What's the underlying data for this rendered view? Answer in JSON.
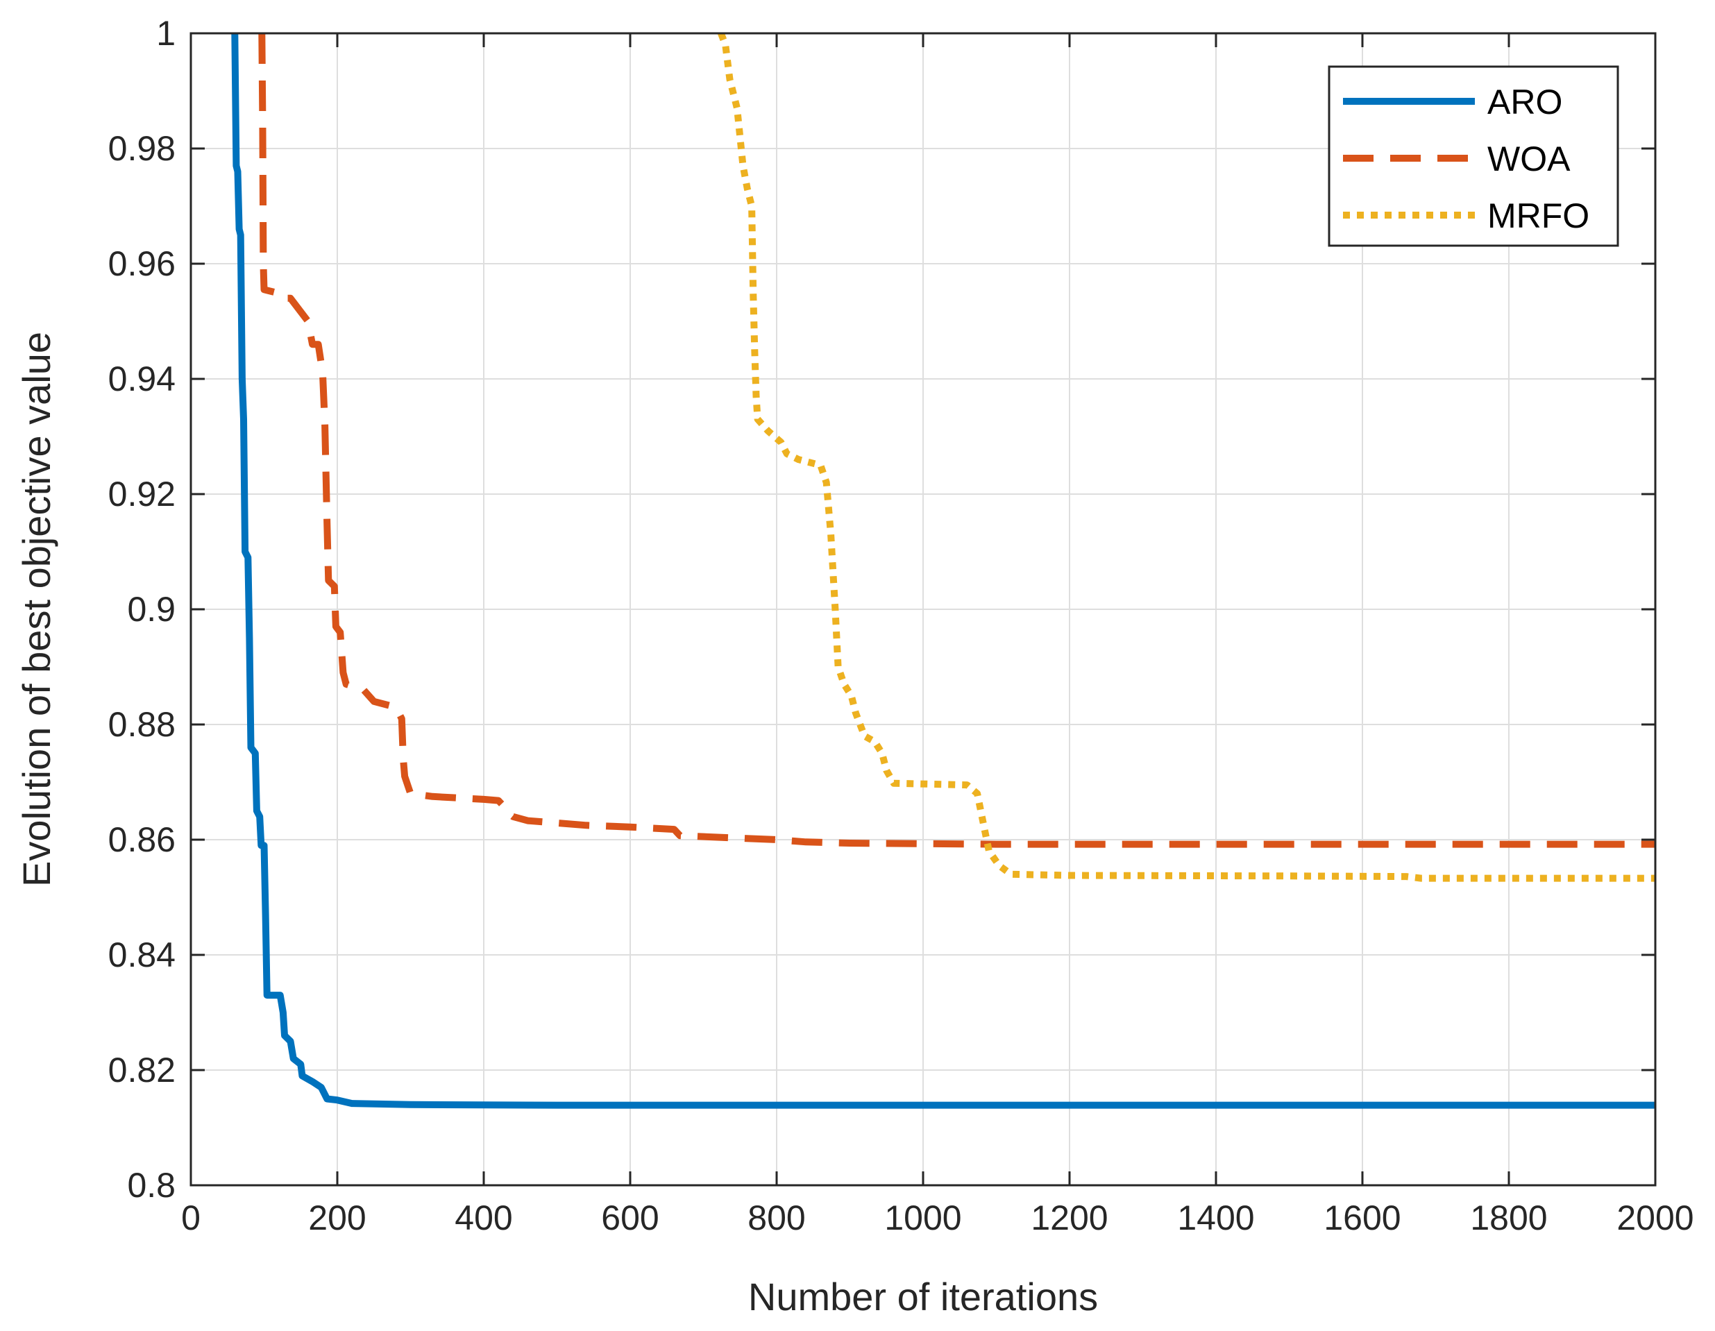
{
  "chart_data": {
    "type": "line",
    "title": "",
    "xlabel": "Number of iterations",
    "ylabel": "Evolution of best objective value",
    "xlim": [
      0,
      2000
    ],
    "ylim": [
      0.8,
      1.0
    ],
    "xticks": [
      0,
      200,
      400,
      600,
      800,
      1000,
      1200,
      1400,
      1600,
      1800,
      2000
    ],
    "yticks": [
      0.8,
      0.82,
      0.84,
      0.86,
      0.88,
      0.9,
      0.92,
      0.94,
      0.96,
      0.98,
      1
    ],
    "xtick_labels": [
      "0",
      "200",
      "400",
      "600",
      "800",
      "1000",
      "1200",
      "1400",
      "1600",
      "1800",
      "2000"
    ],
    "ytick_labels": [
      "0.8",
      "0.82",
      "0.84",
      "0.86",
      "0.88",
      "0.9",
      "0.92",
      "0.94",
      "0.96",
      "0.98",
      "1"
    ],
    "grid": true,
    "legend_position": "top-right",
    "series": [
      {
        "name": "ARO",
        "color": "#0072BD",
        "style": "solid",
        "points": [
          [
            60,
            1.0
          ],
          [
            62,
            0.977
          ],
          [
            64,
            0.976
          ],
          [
            66,
            0.966
          ],
          [
            68,
            0.965
          ],
          [
            70,
            0.94
          ],
          [
            72,
            0.933
          ],
          [
            74,
            0.91
          ],
          [
            78,
            0.909
          ],
          [
            80,
            0.895
          ],
          [
            82,
            0.876
          ],
          [
            88,
            0.875
          ],
          [
            90,
            0.865
          ],
          [
            94,
            0.864
          ],
          [
            96,
            0.859
          ],
          [
            100,
            0.859
          ],
          [
            102,
            0.847
          ],
          [
            104,
            0.833
          ],
          [
            122,
            0.833
          ],
          [
            126,
            0.83
          ],
          [
            128,
            0.826
          ],
          [
            136,
            0.825
          ],
          [
            140,
            0.822
          ],
          [
            150,
            0.821
          ],
          [
            152,
            0.819
          ],
          [
            166,
            0.818
          ],
          [
            178,
            0.817
          ],
          [
            186,
            0.815
          ],
          [
            200,
            0.8148
          ],
          [
            220,
            0.8142
          ],
          [
            300,
            0.814
          ],
          [
            500,
            0.8139
          ],
          [
            2000,
            0.8139
          ]
        ]
      },
      {
        "name": "WOA",
        "color": "#D95319",
        "style": "dashed",
        "points": [
          [
            97,
            1.0
          ],
          [
            98,
            0.985
          ],
          [
            99,
            0.96
          ],
          [
            100,
            0.9555
          ],
          [
            116,
            0.955
          ],
          [
            122,
            0.954
          ],
          [
            136,
            0.954
          ],
          [
            160,
            0.95
          ],
          [
            166,
            0.946
          ],
          [
            174,
            0.946
          ],
          [
            180,
            0.941
          ],
          [
            183,
            0.932
          ],
          [
            186,
            0.915
          ],
          [
            188,
            0.905
          ],
          [
            196,
            0.904
          ],
          [
            198,
            0.897
          ],
          [
            204,
            0.896
          ],
          [
            208,
            0.889
          ],
          [
            212,
            0.887
          ],
          [
            236,
            0.886
          ],
          [
            250,
            0.884
          ],
          [
            280,
            0.883
          ],
          [
            288,
            0.881
          ],
          [
            290,
            0.874
          ],
          [
            292,
            0.871
          ],
          [
            300,
            0.868
          ],
          [
            330,
            0.8675
          ],
          [
            400,
            0.867
          ],
          [
            420,
            0.8668
          ],
          [
            426,
            0.866
          ],
          [
            432,
            0.8648
          ],
          [
            440,
            0.864
          ],
          [
            460,
            0.8633
          ],
          [
            540,
            0.8625
          ],
          [
            600,
            0.8622
          ],
          [
            660,
            0.8618
          ],
          [
            668,
            0.8607
          ],
          [
            800,
            0.86
          ],
          [
            840,
            0.8596
          ],
          [
            900,
            0.8594
          ],
          [
            1100,
            0.8592
          ],
          [
            2000,
            0.8592
          ]
        ]
      },
      {
        "name": "MRFO",
        "color": "#EDB120",
        "style": "dotted",
        "points": [
          [
            724,
            1.0
          ],
          [
            730,
            0.998
          ],
          [
            736,
            0.992
          ],
          [
            746,
            0.987
          ],
          [
            754,
            0.977
          ],
          [
            760,
            0.973
          ],
          [
            766,
            0.97
          ],
          [
            768,
            0.955
          ],
          [
            770,
            0.945
          ],
          [
            772,
            0.937
          ],
          [
            774,
            0.933
          ],
          [
            788,
            0.931
          ],
          [
            806,
            0.929
          ],
          [
            814,
            0.927
          ],
          [
            830,
            0.926
          ],
          [
            860,
            0.925
          ],
          [
            868,
            0.922
          ],
          [
            874,
            0.913
          ],
          [
            880,
            0.9
          ],
          [
            884,
            0.89
          ],
          [
            892,
            0.887
          ],
          [
            902,
            0.885
          ],
          [
            908,
            0.882
          ],
          [
            920,
            0.878
          ],
          [
            934,
            0.877
          ],
          [
            944,
            0.875
          ],
          [
            950,
            0.872
          ],
          [
            960,
            0.8698
          ],
          [
            1060,
            0.8695
          ],
          [
            1074,
            0.868
          ],
          [
            1082,
            0.863
          ],
          [
            1090,
            0.858
          ],
          [
            1104,
            0.8555
          ],
          [
            1120,
            0.854
          ],
          [
            1200,
            0.8538
          ],
          [
            1500,
            0.8537
          ],
          [
            1660,
            0.8536
          ],
          [
            1680,
            0.8533
          ],
          [
            2000,
            0.8533
          ]
        ]
      }
    ]
  }
}
